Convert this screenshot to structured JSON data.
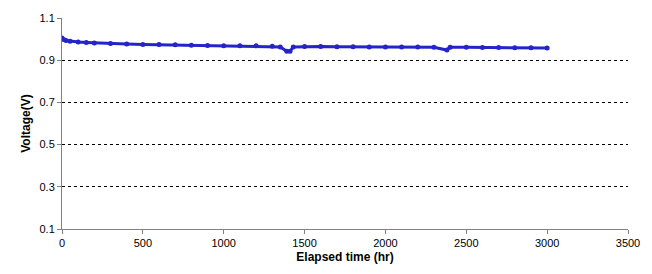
{
  "chart_data": {
    "type": "scatter",
    "x_label": "Elapsed time (hr)",
    "y_label": "Voltage(V)",
    "x": [
      0,
      10,
      25,
      50,
      100,
      150,
      200,
      300,
      400,
      500,
      600,
      700,
      800,
      900,
      1000,
      1100,
      1200,
      1300,
      1350,
      1390,
      1410,
      1430,
      1500,
      1600,
      1700,
      1800,
      1900,
      2000,
      2100,
      2200,
      2300,
      2380,
      2400,
      2500,
      2600,
      2700,
      2800,
      2900,
      3000
    ],
    "values": [
      1.005,
      0.998,
      0.993,
      0.99,
      0.986,
      0.984,
      0.982,
      0.979,
      0.977,
      0.975,
      0.974,
      0.973,
      0.971,
      0.97,
      0.969,
      0.968,
      0.968,
      0.966,
      0.963,
      0.942,
      0.942,
      0.963,
      0.965,
      0.965,
      0.964,
      0.964,
      0.963,
      0.963,
      0.962,
      0.962,
      0.961,
      0.948,
      0.961,
      0.961,
      0.96,
      0.96,
      0.959,
      0.959,
      0.958
    ],
    "color": "#2424c8",
    "marker": "circle",
    "xlim": [
      0,
      3500
    ],
    "xticks": [
      0,
      500,
      1000,
      1500,
      2000,
      2500,
      3000,
      3500
    ],
    "ylim": [
      0.1,
      1.1
    ],
    "yticks": [
      0.1,
      0.3,
      0.5,
      0.7,
      0.9,
      1.1
    ],
    "grid": true
  }
}
